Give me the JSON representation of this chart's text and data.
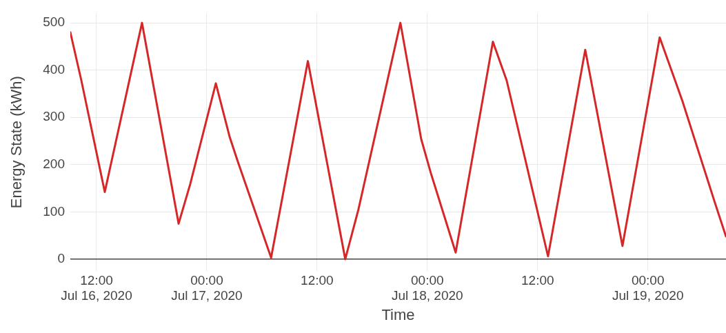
{
  "chart_data": {
    "type": "line",
    "xlabel": "Time",
    "ylabel": "Energy State (kWh)",
    "x": [
      "2020-07-16T09:09",
      "2020-07-16T10:21",
      "2020-07-16T12:54",
      "2020-07-16T16:57",
      "2020-07-16T20:56",
      "2020-07-16T22:12",
      "2020-07-17T00:59",
      "2020-07-17T02:30",
      "2020-07-17T03:22",
      "2020-07-17T07:00",
      "2020-07-17T11:00",
      "2020-07-17T15:04",
      "2020-07-17T16:30",
      "2020-07-17T21:04",
      "2020-07-17T23:20",
      "2020-07-18T00:22",
      "2020-07-18T03:05",
      "2020-07-18T07:08",
      "2020-07-18T08:38",
      "2020-07-18T13:08",
      "2020-07-18T17:11",
      "2020-07-18T21:14",
      "2020-07-19T01:17",
      "2020-07-19T02:38",
      "2020-07-19T03:45",
      "2020-07-19T07:17",
      "2020-07-19T08:30"
    ],
    "series": [
      {
        "color": "#d62728",
        "values": [
          480,
          378,
          142,
          500,
          75,
          159,
          372,
          258,
          207,
          3,
          419,
          0,
          105,
          500,
          254,
          183,
          14,
          460,
          378,
          6,
          443,
          28,
          469,
          396,
          335,
          120,
          48
        ]
      }
    ],
    "xlim": [
      "2020-07-16T09:09",
      "2020-07-19T08:30"
    ],
    "xticks": [
      {
        "value": "2020-07-16T12:00",
        "label": "12:00\nJul 16, 2020"
      },
      {
        "value": "2020-07-17T00:00",
        "label": "00:00\nJul 17, 2020"
      },
      {
        "value": "2020-07-17T12:00",
        "label": "12:00"
      },
      {
        "value": "2020-07-18T00:00",
        "label": "00:00\nJul 18, 2020"
      },
      {
        "value": "2020-07-18T12:00",
        "label": "12:00"
      },
      {
        "value": "2020-07-19T00:00",
        "label": "00:00\nJul 19, 2020"
      }
    ],
    "ylim": [
      -25,
      520
    ],
    "yticks": [
      0,
      100,
      200,
      300,
      400,
      500
    ],
    "grid": true,
    "legend": false,
    "marker": "none",
    "line_style": "solid"
  }
}
